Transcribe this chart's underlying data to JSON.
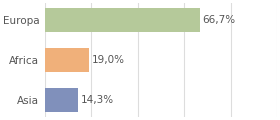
{
  "categories": [
    "Europa",
    "Africa",
    "Asia"
  ],
  "values": [
    66.7,
    19.0,
    14.3
  ],
  "labels": [
    "66,7%",
    "19,0%",
    "14,3%"
  ],
  "bar_colors": [
    "#b5c99a",
    "#f0b07a",
    "#8090bb"
  ],
  "background_color": "#ffffff",
  "grid_color": "#dddddd",
  "xlim": [
    0,
    100
  ],
  "bar_height": 0.6,
  "label_fontsize": 7.5,
  "tick_fontsize": 7.5,
  "text_color": "#555555"
}
